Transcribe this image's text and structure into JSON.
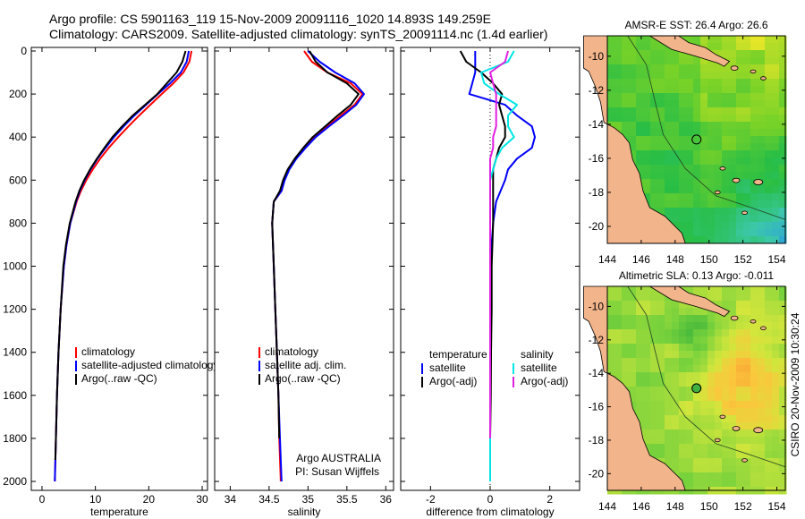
{
  "title": {
    "line1": "Argo profile: CS 5901163_119 15-Nov-2009 20091116_1020 14.893S 149.259E",
    "line2": "Climatology: CARS2009. Satellite-adjusted climatology: synTS_20091114.nc (1.4d earlier)"
  },
  "side_label": "CSIRO 20-Nov-2009 10:30:24",
  "colors": {
    "climatology": "#ff0000",
    "satellite": "#0000ff",
    "argo": "#000000",
    "sal_satellite": "#00e5e5",
    "sal_argo": "#e020e0",
    "land": "#f2b48a"
  },
  "depth_ticks": [
    "0",
    "200",
    "400",
    "600",
    "800",
    "1000",
    "1200",
    "1400",
    "1600",
    "1800",
    "2000"
  ],
  "chart_data": [
    {
      "type": "line",
      "name": "temperature",
      "xlabel": "temperature",
      "ylabel": "",
      "xlim": [
        -2,
        31
      ],
      "ylim": [
        2060,
        0
      ],
      "xticks": [
        "0",
        "10",
        "20",
        "30"
      ],
      "xtick_values": [
        0,
        10,
        20,
        30
      ],
      "depth": [
        0,
        50,
        100,
        150,
        200,
        250,
        300,
        350,
        400,
        450,
        500,
        550,
        600,
        650,
        700,
        800,
        900,
        1000,
        1200,
        1400,
        1600,
        1800,
        1900,
        2000
      ],
      "series": [
        {
          "name": "climatology",
          "color": "#ff0000",
          "values": [
            28.0,
            27.6,
            26.5,
            24.6,
            22.4,
            20.3,
            18.2,
            16.2,
            14.3,
            12.5,
            10.9,
            9.5,
            8.3,
            7.3,
            6.5,
            5.3,
            4.6,
            4.1,
            3.5,
            3.1,
            2.8,
            2.6,
            2.5,
            2.4
          ]
        },
        {
          "name": "satellite-adjusted climatology",
          "color": "#0000ff",
          "values": [
            27.5,
            27.1,
            26.0,
            24.0,
            21.7,
            19.5,
            17.3,
            15.3,
            13.5,
            11.9,
            10.4,
            9.1,
            8.0,
            7.1,
            6.4,
            5.3,
            4.6,
            4.1,
            3.5,
            3.1,
            2.8,
            2.6,
            2.5,
            2.4
          ]
        },
        {
          "name": "Argo(..raw -QC)",
          "color": "#000000",
          "values": [
            26.9,
            26.3,
            25.2,
            23.4,
            21.6,
            19.3,
            17.0,
            15.0,
            13.2,
            11.7,
            10.3,
            9.0,
            7.9,
            7.0,
            6.3,
            5.2,
            4.5,
            4.0,
            3.5,
            3.1,
            2.8,
            2.6,
            2.5,
            null
          ]
        }
      ],
      "legend": [
        "climatology",
        "satellite-adjusted climatology",
        "Argo(..raw -QC)"
      ]
    },
    {
      "type": "line",
      "name": "salinity",
      "xlabel": "salinity",
      "xlim": [
        33.8,
        36.1
      ],
      "ylim": [
        2060,
        0
      ],
      "xticks": [
        "34",
        "34.5",
        "35",
        "35.5",
        "36"
      ],
      "xtick_values": [
        34,
        34.5,
        35,
        35.5,
        36
      ],
      "depth": [
        0,
        50,
        100,
        150,
        200,
        250,
        300,
        350,
        400,
        450,
        500,
        550,
        600,
        650,
        700,
        800,
        900,
        1000,
        1200,
        1400,
        1600,
        1800,
        2000
      ],
      "series": [
        {
          "name": "climatology",
          "color": "#ff0000",
          "values": [
            34.95,
            35.05,
            35.25,
            35.55,
            35.7,
            35.6,
            35.42,
            35.25,
            35.08,
            34.95,
            34.84,
            34.75,
            34.69,
            34.66,
            34.56,
            34.54,
            34.55,
            34.56,
            34.58,
            34.6,
            34.62,
            34.63,
            34.65
          ]
        },
        {
          "name": "satellite adj. clim.",
          "color": "#0000ff",
          "values": [
            35.0,
            35.15,
            35.35,
            35.6,
            35.72,
            35.62,
            35.45,
            35.27,
            35.1,
            34.97,
            34.85,
            34.76,
            34.7,
            34.66,
            34.56,
            34.54,
            34.55,
            34.56,
            34.58,
            34.6,
            34.62,
            34.64,
            34.66
          ]
        },
        {
          "name": "Argo(..raw -QC)",
          "color": "#000000",
          "values": [
            35.02,
            35.1,
            35.25,
            35.5,
            35.65,
            35.55,
            35.38,
            35.22,
            35.06,
            34.94,
            34.83,
            34.74,
            34.68,
            34.64,
            34.56,
            34.54,
            34.55,
            34.56,
            34.58,
            34.6,
            34.62,
            34.63,
            null
          ]
        }
      ],
      "legend": [
        "climatology",
        "satellite adj. clim.",
        "Argo(..raw -QC)"
      ],
      "annotation": [
        "Argo AUSTRALIA",
        "PI: Susan Wijffels"
      ]
    },
    {
      "type": "line",
      "name": "difference",
      "xlabel": "difference from climatology",
      "xlim": [
        -3,
        3
      ],
      "ylim": [
        2060,
        0
      ],
      "xticks": [
        "-2",
        "0",
        "2"
      ],
      "xtick_values": [
        -2,
        0,
        2
      ],
      "depth": [
        0,
        50,
        100,
        150,
        200,
        250,
        300,
        350,
        400,
        450,
        500,
        550,
        600,
        700,
        800,
        1000,
        1200,
        1400,
        1600,
        1800,
        2000
      ],
      "series": [
        {
          "name": "temperature satellite",
          "color": "#0000ff",
          "values": [
            -0.5,
            -0.5,
            -0.5,
            -0.6,
            -0.7,
            0.5,
            0.9,
            1.4,
            1.5,
            1.4,
            0.9,
            0.6,
            0.5,
            0.2,
            0.1,
            0.0,
            0.0,
            0.0,
            0.0,
            0.0,
            0.0
          ]
        },
        {
          "name": "temperature Argo(-adj)",
          "color": "#000000",
          "values": [
            -1.0,
            -0.8,
            -0.3,
            0.1,
            0.4,
            0.3,
            0.4,
            0.5,
            0.5,
            0.3,
            0.2,
            0.1,
            0.1,
            0.1,
            0.1,
            0.05,
            0.05,
            0.03,
            0.02,
            0.0,
            null
          ]
        },
        {
          "name": "salinity satellite",
          "color": "#00e5e5",
          "values": [
            0.8,
            0.6,
            -0.3,
            -0.2,
            0.3,
            0.9,
            0.6,
            0.6,
            0.8,
            0.4,
            0.2,
            0.1,
            0.0,
            0.0,
            0.0,
            0.0,
            0.0,
            0.0,
            0.0,
            0.0,
            0.0
          ]
        },
        {
          "name": "salinity Argo(-adj)",
          "color": "#e020e0",
          "values": [
            0.6,
            0.5,
            0.0,
            0.1,
            0.2,
            0.2,
            0.2,
            0.2,
            0.1,
            0.1,
            0.0,
            0.0,
            0.0,
            0.0,
            0.0,
            0.0,
            0.0,
            0.0,
            0.0,
            0.0,
            null
          ]
        }
      ],
      "legend_headers": [
        "temperature",
        "salinity"
      ],
      "legend": [
        "satellite",
        "Argo(-adj)",
        "satellite",
        "Argo(-adj)"
      ]
    },
    {
      "type": "heatmap",
      "name": "AMSR-E SST",
      "title": "AMSR-E SST: 26.4 Argo: 26.6",
      "xlim": [
        144,
        154.5
      ],
      "ylim": [
        -21,
        -8.8
      ],
      "xticks": [
        "144",
        "146",
        "148",
        "150",
        "152",
        "154"
      ],
      "xtick_values": [
        144,
        146,
        148,
        150,
        152,
        154
      ],
      "yticks": [
        "-10",
        "-12",
        "-14",
        "-16",
        "-18",
        "-20"
      ],
      "ytick_values": [
        -10,
        -12,
        -14,
        -16,
        -18,
        -20
      ],
      "profile_location": {
        "lon": 149.259,
        "lat": -14.893
      }
    },
    {
      "type": "heatmap",
      "name": "Altimetric SLA",
      "title": "Altimetric SLA: 0.13 Argo: -0.011",
      "xlim": [
        144,
        154.5
      ],
      "ylim": [
        -21,
        -8.8
      ],
      "xticks": [
        "144",
        "146",
        "148",
        "150",
        "152",
        "154"
      ],
      "xtick_values": [
        144,
        146,
        148,
        150,
        152,
        154
      ],
      "yticks": [
        "-10",
        "-12",
        "-14",
        "-16",
        "-18",
        "-20"
      ],
      "ytick_values": [
        -10,
        -12,
        -14,
        -16,
        -18,
        -20
      ],
      "profile_location": {
        "lon": 149.259,
        "lat": -14.893
      }
    }
  ]
}
